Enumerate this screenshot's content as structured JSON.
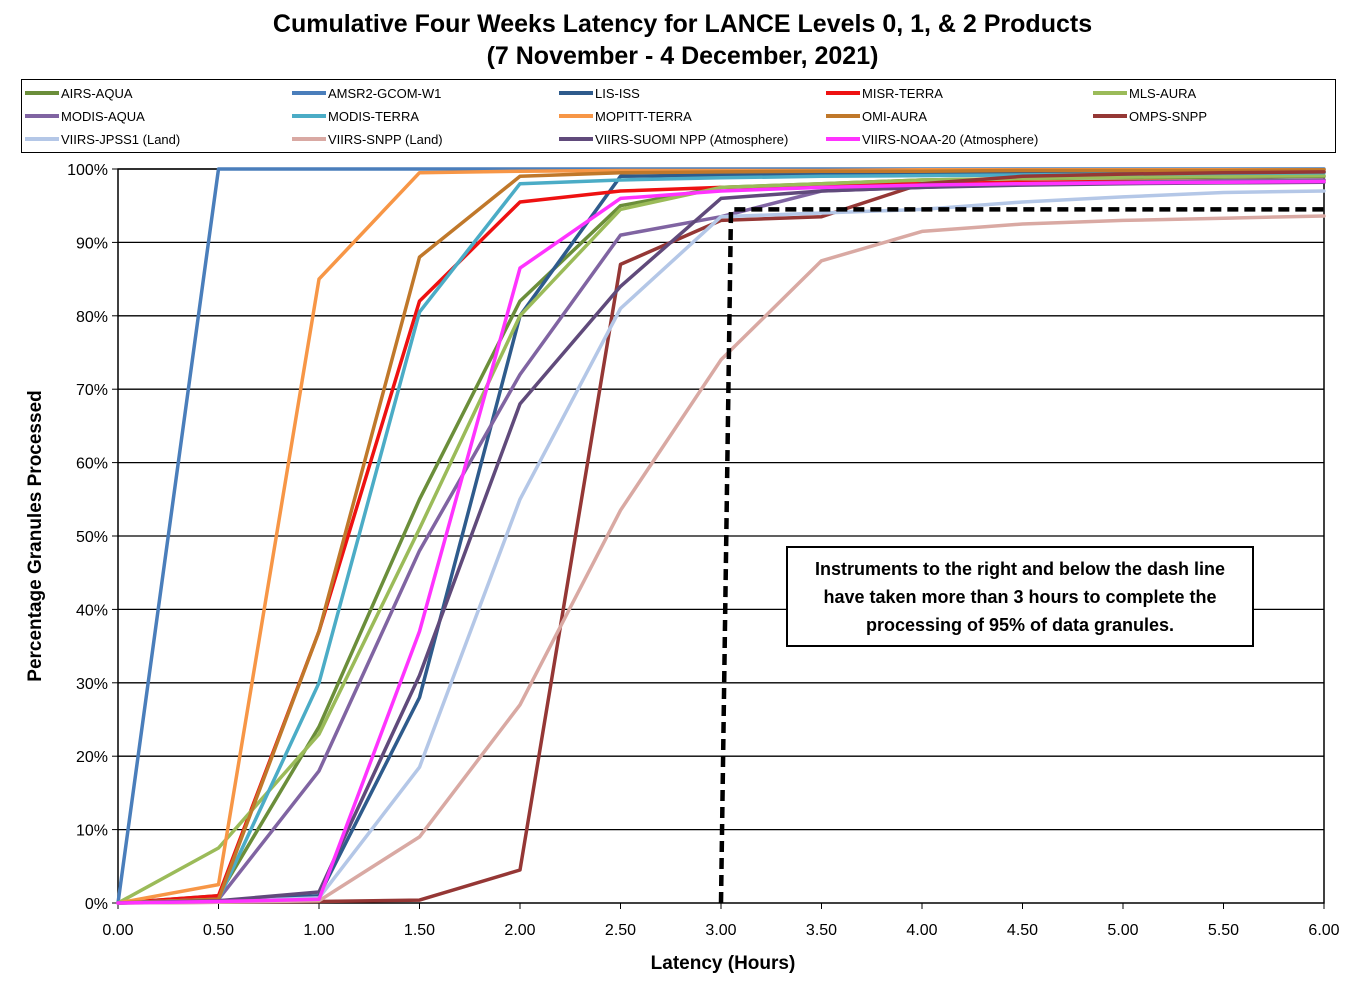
{
  "chart_data": {
    "type": "line",
    "title": "Cumulative Four Weeks Latency  for LANCE Levels 0, 1, & 2 Products",
    "subtitle": "(7  November   -  4  December,  2021)",
    "xlabel": "Latency (Hours)",
    "ylabel": "Percentage Granules Processed",
    "x": [
      0,
      0.5,
      1.0,
      1.5,
      2.0,
      2.5,
      3.0,
      3.5,
      4.0,
      4.5,
      5.0,
      5.5,
      6.0
    ],
    "x_tick_labels": [
      "0.00",
      "0.50",
      "1.00",
      "1.50",
      "2.00",
      "2.50",
      "3.00",
      "3.50",
      "4.00",
      "4.50",
      "5.00",
      "5.50",
      "6.00"
    ],
    "y_tick_labels": [
      "0%",
      "10%",
      "20%",
      "30%",
      "40%",
      "50%",
      "60%",
      "70%",
      "80%",
      "90%",
      "100%"
    ],
    "xlim": [
      0,
      6
    ],
    "ylim": [
      0,
      100
    ],
    "grid": "horizontal",
    "legend_position": "top",
    "series": [
      {
        "name": "AIRS-AQUA",
        "color": "#6B8E3A",
        "values": [
          0,
          1,
          24,
          55,
          82,
          95,
          97.5,
          98,
          98.5,
          98.7,
          98.8,
          98.9,
          99
        ]
      },
      {
        "name": "AMSR2-GCOM-W1",
        "color": "#4A7EBB",
        "values": [
          0,
          100,
          100,
          100,
          100,
          100,
          100,
          100,
          100,
          100,
          100,
          100,
          100
        ]
      },
      {
        "name": "LIS-ISS",
        "color": "#2E5B8C",
        "values": [
          0,
          0.3,
          1,
          28,
          80,
          99,
          99.2,
          99.3,
          99.4,
          99.5,
          99.5,
          99.6,
          99.6
        ]
      },
      {
        "name": "MISR-TERRA",
        "color": "#EE1111",
        "values": [
          0,
          1,
          37,
          82,
          95.5,
          97,
          97.5,
          97.8,
          98,
          98.2,
          98.3,
          98.4,
          98.5
        ]
      },
      {
        "name": "MLS-AURA",
        "color": "#9BBB59",
        "values": [
          0,
          7.5,
          23,
          51,
          80,
          94.5,
          97.5,
          98,
          98.5,
          98.7,
          98.9,
          99,
          99.1
        ]
      },
      {
        "name": "MODIS-AQUA",
        "color": "#8064A2",
        "values": [
          0,
          0.5,
          18,
          48,
          72,
          91,
          93.5,
          97,
          97.5,
          98,
          98.2,
          98.4,
          98.5
        ]
      },
      {
        "name": "MODIS-TERRA",
        "color": "#4BACC6",
        "values": [
          0,
          0.5,
          30,
          80.5,
          98,
          98.5,
          98.8,
          99,
          99.1,
          99.2,
          99.3,
          99.4,
          99.5
        ]
      },
      {
        "name": "MOPITT-TERRA",
        "color": "#F79646",
        "values": [
          0,
          2.5,
          85,
          99.5,
          99.7,
          99.8,
          99.8,
          99.8,
          99.9,
          99.9,
          99.9,
          99.9,
          99.9
        ]
      },
      {
        "name": "OMI-AURA",
        "color": "#C0782A",
        "values": [
          0,
          0.5,
          37,
          88,
          99,
          99.5,
          99.6,
          99.7,
          99.7,
          99.8,
          99.8,
          99.8,
          99.9
        ]
      },
      {
        "name": "OMPS-SNPP",
        "color": "#953735",
        "values": [
          0,
          0.1,
          0.2,
          0.4,
          4.5,
          87,
          93,
          93.5,
          98,
          99,
          99.3,
          99.5,
          99.6
        ]
      },
      {
        "name": "VIIRS-JPSS1 (Land)",
        "color": "#B4C7E7",
        "values": [
          0,
          0.2,
          0.7,
          18.5,
          55,
          81,
          93.5,
          94,
          94.5,
          95.5,
          96.2,
          96.8,
          97
        ]
      },
      {
        "name": "VIIRS-SNPP (Land)",
        "color": "#D9A9A3",
        "values": [
          0,
          0.1,
          0.3,
          9,
          27,
          53.5,
          74,
          87.5,
          91.5,
          92.5,
          93,
          93.3,
          93.6
        ]
      },
      {
        "name": "VIIRS-SUOMI NPP (Atmosphere)",
        "color": "#604A7B",
        "values": [
          0,
          0.3,
          1.5,
          31,
          68,
          84,
          96,
          97,
          97.5,
          97.8,
          98,
          98.1,
          98.2
        ]
      },
      {
        "name": "VIIRS-NOAA-20 (Atmosphere)",
        "color": "#FF33FF",
        "values": [
          0,
          0.2,
          0.5,
          37,
          86.5,
          96,
          97,
          97.5,
          97.8,
          98,
          98.1,
          98.2,
          98.3
        ]
      }
    ],
    "reference_line": {
      "style": "dashed",
      "color": "#000000",
      "x": [
        3.0,
        3.05,
        3.05,
        6.0
      ],
      "y": [
        0,
        94.5,
        94.5,
        94.5
      ]
    },
    "annotation": "Instruments to the right and below the dash line have taken more than 3 hours to complete the processing of 95% of data granules."
  }
}
